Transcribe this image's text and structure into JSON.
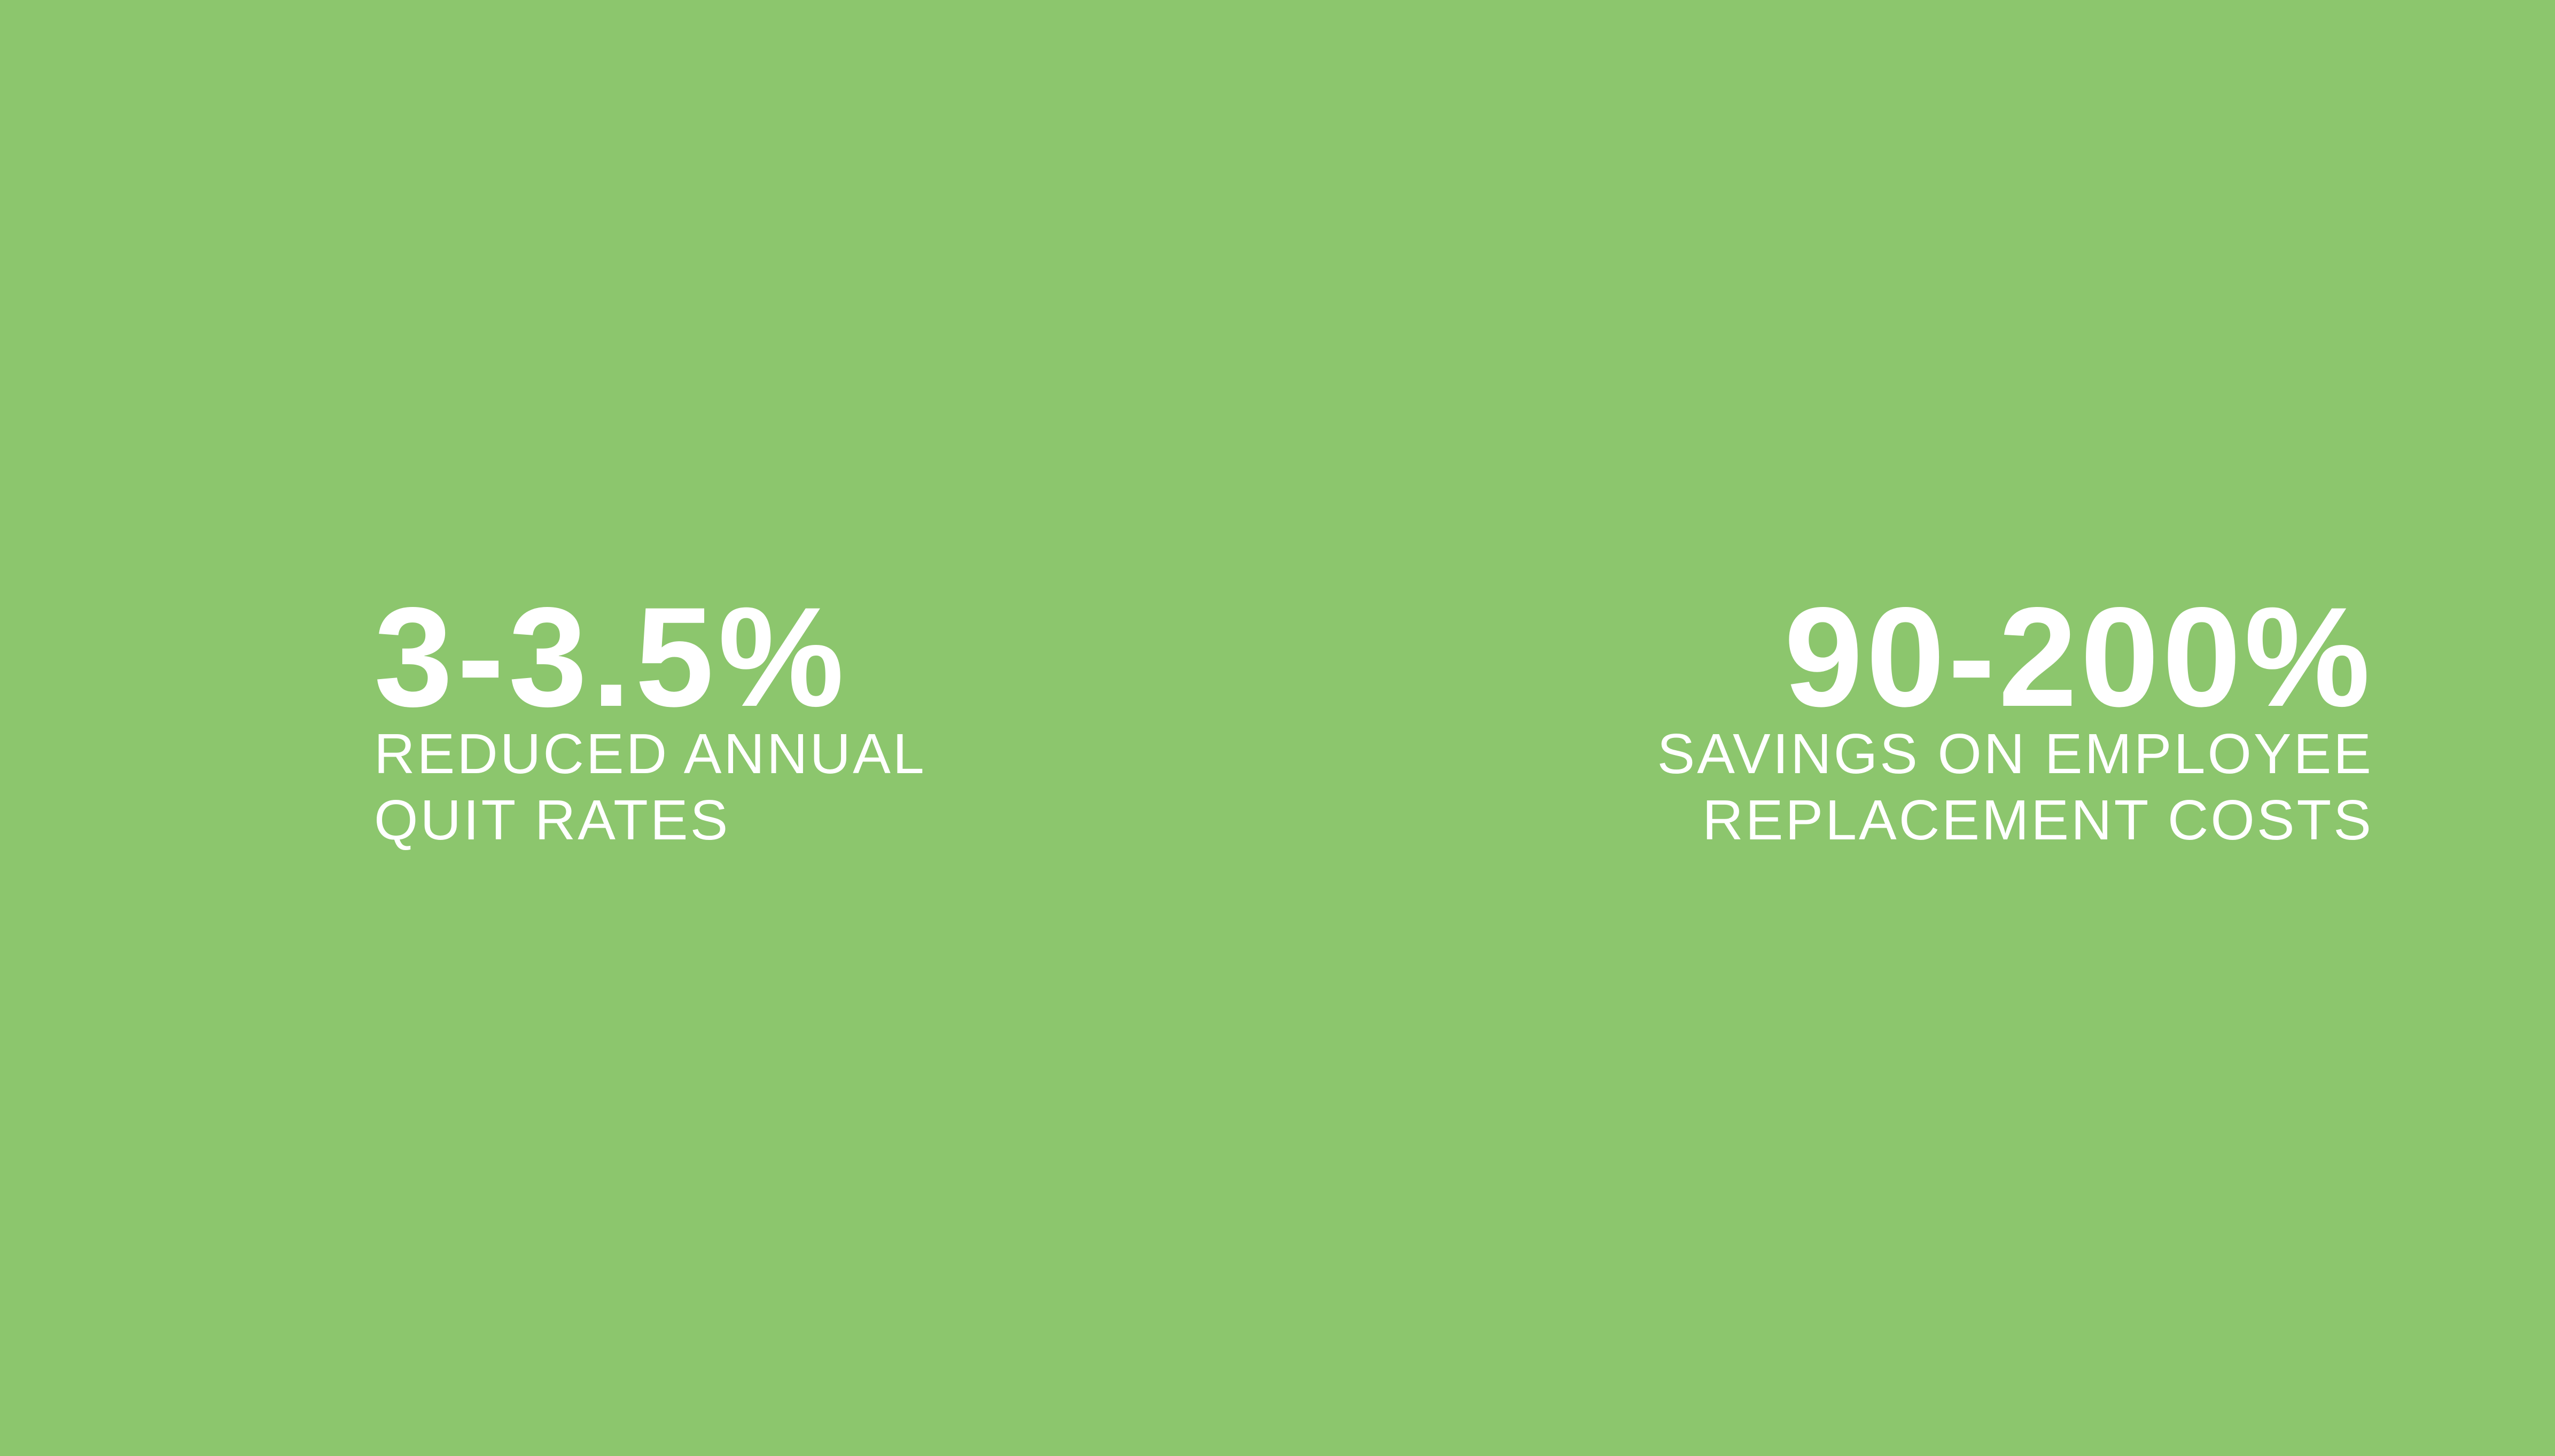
{
  "colors": {
    "background": "#8CC66D",
    "text": "#FFFFFF"
  },
  "stats": [
    {
      "value": "3-3.5%",
      "label_lines": [
        "REDUCED ANNUAL",
        "QUIT RATES"
      ],
      "align": "left"
    },
    {
      "value": "90-200%",
      "label_lines": [
        "SAVINGS ON EMPLOYEE",
        "REPLACEMENT COSTS"
      ],
      "align": "right"
    }
  ]
}
